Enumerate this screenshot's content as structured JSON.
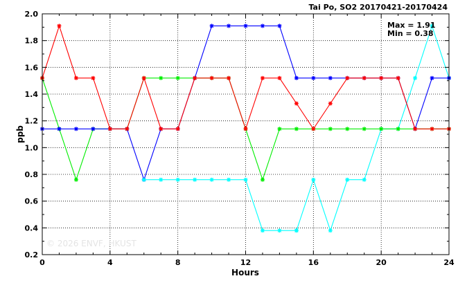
{
  "chart_data": {
    "type": "line",
    "title": "Tai Po, SO2 20170421-20170424",
    "xlabel": "Hours",
    "ylabel": "ppb",
    "xlim": [
      0,
      24
    ],
    "ylim": [
      0.2,
      2.0
    ],
    "x_ticks": [
      0,
      4,
      8,
      12,
      16,
      20,
      24
    ],
    "y_ticks": [
      0.2,
      0.4,
      0.6,
      0.8,
      1.0,
      1.2,
      1.4,
      1.6,
      1.8,
      2.0
    ],
    "x_tick_labels": [
      "0",
      "4",
      "8",
      "12",
      "16",
      "20",
      "24"
    ],
    "y_tick_labels": [
      "0.2",
      "0.4",
      "0.6",
      "0.8",
      "1.0",
      "1.2",
      "1.4",
      "1.6",
      "1.8",
      "2.0"
    ],
    "grid": true,
    "stats": {
      "max": "Max = 1.91",
      "min": "Min = 0.38"
    },
    "watermark": "© 2026  ENVF, HKUST",
    "series": [
      {
        "color": "#00ffff",
        "x": [
          15,
          16,
          17,
          18,
          19,
          20,
          21,
          22,
          23,
          24
        ],
        "y": [
          0.38,
          0.76,
          0.38,
          0.76,
          0.76,
          1.14,
          1.14,
          1.52,
          1.91,
          1.52
        ]
      },
      {
        "color": "#00ee00",
        "x": [
          0,
          1,
          2,
          3,
          4,
          5,
          6,
          7,
          8,
          9,
          10,
          11,
          12,
          13,
          14,
          15,
          16,
          17,
          18,
          19,
          20,
          21,
          22,
          23,
          24
        ],
        "y": [
          1.52,
          1.14,
          0.76,
          1.14,
          1.14,
          1.14,
          1.52,
          1.52,
          1.52,
          1.52,
          1.52,
          1.52,
          1.14,
          0.76,
          1.14,
          1.14,
          1.14,
          1.14,
          1.14,
          1.14,
          1.14,
          1.14,
          1.14,
          1.14,
          1.14
        ]
      },
      {
        "color": "#0000ff",
        "x": [
          0,
          1,
          2,
          3,
          4,
          5,
          6,
          7,
          8,
          9,
          10,
          11,
          12,
          13,
          14,
          15,
          16,
          17,
          18,
          19,
          20,
          21,
          22,
          23,
          24
        ],
        "y": [
          1.14,
          1.14,
          1.14,
          1.14,
          1.14,
          1.14,
          0.76,
          1.14,
          1.14,
          1.52,
          1.91,
          1.91,
          1.91,
          1.91,
          1.91,
          1.52,
          1.52,
          1.52,
          1.52,
          1.52,
          1.52,
          1.52,
          1.14,
          1.52,
          1.52
        ]
      },
      {
        "color": "#00ffff",
        "x": [
          6,
          7,
          8,
          9,
          10,
          11,
          12,
          13,
          14,
          15
        ],
        "y": [
          0.76,
          0.76,
          0.76,
          0.76,
          0.76,
          0.76,
          0.76,
          0.38,
          0.38,
          0.38
        ]
      },
      {
        "color": "#ff0000",
        "x": [
          0,
          1,
          2,
          3,
          4,
          5,
          6,
          7,
          8,
          9,
          10,
          11,
          12,
          13,
          14,
          15,
          16,
          17,
          18,
          19,
          20,
          21,
          22,
          23,
          24
        ],
        "y": [
          1.52,
          1.91,
          1.52,
          1.52,
          1.14,
          1.14,
          1.52,
          1.14,
          1.14,
          1.52,
          1.52,
          1.52,
          1.14,
          1.52,
          1.52,
          1.33,
          1.14,
          1.33,
          1.52,
          1.52,
          1.52,
          1.52,
          1.14,
          1.14,
          1.14
        ]
      }
    ]
  }
}
